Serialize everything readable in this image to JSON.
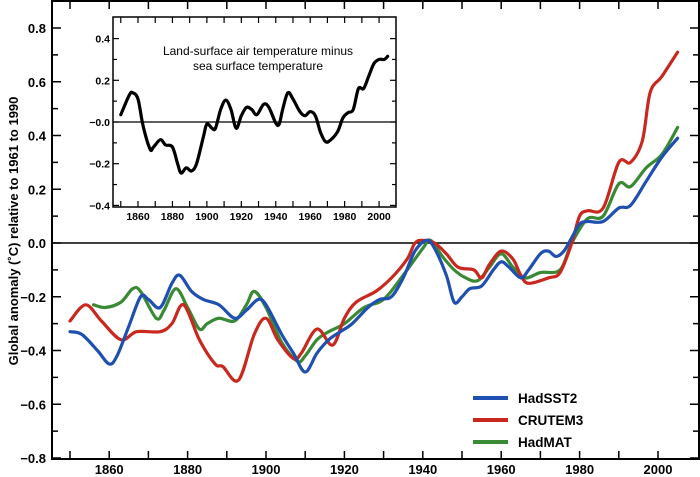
{
  "chart_data": [
    {
      "type": "line",
      "title": "",
      "xlabel": "",
      "ylabel": "Global anomaly (˚C)  relative to 1961 to 1990",
      "xlim": [
        1845,
        2010
      ],
      "ylim": [
        -0.81,
        0.9
      ],
      "x_ticks": [
        "1860",
        "1880",
        "1900",
        "1920",
        "1940",
        "1960",
        "1980",
        "2000"
      ],
      "x_tick_values": [
        1860,
        1880,
        1900,
        1920,
        1940,
        1960,
        1980,
        2000
      ],
      "y_ticks": [
        "0.8",
        "0.6",
        "0.4",
        "0.2",
        "0.0",
        "−0.2",
        "−0.4",
        "−0.6",
        "−0.8"
      ],
      "y_tick_values": [
        0.8,
        0.6,
        0.4,
        0.2,
        0.0,
        -0.2,
        -0.4,
        -0.6,
        -0.8
      ],
      "zero_line": true,
      "legend_position": "bottom-right",
      "series": [
        {
          "name": "HadSST2",
          "color": "#1f4fb0",
          "x": [
            1850,
            1853,
            1857,
            1860,
            1862,
            1865,
            1868,
            1870,
            1873,
            1876,
            1878,
            1881,
            1884,
            1888,
            1892,
            1895,
            1898,
            1900,
            1904,
            1907,
            1910,
            1913,
            1916,
            1919,
            1922,
            1926,
            1929,
            1932,
            1935,
            1938,
            1941,
            1943,
            1946,
            1948,
            1950,
            1952,
            1955,
            1958,
            1960,
            1962,
            1965,
            1967,
            1970,
            1972,
            1974,
            1976,
            1978,
            1980,
            1982,
            1986,
            1990,
            1993,
            1997,
            2001,
            2005
          ],
          "y": [
            -0.33,
            -0.34,
            -0.4,
            -0.45,
            -0.42,
            -0.31,
            -0.2,
            -0.21,
            -0.24,
            -0.15,
            -0.12,
            -0.18,
            -0.21,
            -0.23,
            -0.28,
            -0.25,
            -0.21,
            -0.23,
            -0.34,
            -0.41,
            -0.48,
            -0.41,
            -0.36,
            -0.33,
            -0.3,
            -0.24,
            -0.21,
            -0.2,
            -0.13,
            -0.03,
            0.01,
            -0.02,
            -0.12,
            -0.22,
            -0.2,
            -0.17,
            -0.16,
            -0.1,
            -0.07,
            -0.09,
            -0.13,
            -0.1,
            -0.04,
            -0.03,
            -0.05,
            -0.03,
            0.02,
            0.07,
            0.08,
            0.08,
            0.13,
            0.14,
            0.23,
            0.32,
            0.39
          ]
        },
        {
          "name": "CRUTEM3",
          "color": "#c8281e",
          "x": [
            1850,
            1854,
            1858,
            1863,
            1867,
            1873,
            1876,
            1879,
            1883,
            1887,
            1889,
            1893,
            1897,
            1900,
            1903,
            1907,
            1909,
            1913,
            1917,
            1920,
            1923,
            1928,
            1932,
            1936,
            1938,
            1940,
            1943,
            1946,
            1949,
            1953,
            1955,
            1957,
            1960,
            1963,
            1965,
            1967,
            1972,
            1975,
            1978,
            1980,
            1982,
            1986,
            1990,
            1993,
            1996,
            1998,
            2001,
            2005
          ],
          "y": [
            -0.29,
            -0.23,
            -0.29,
            -0.36,
            -0.33,
            -0.33,
            -0.3,
            -0.23,
            -0.36,
            -0.45,
            -0.46,
            -0.51,
            -0.34,
            -0.28,
            -0.36,
            -0.43,
            -0.41,
            -0.32,
            -0.38,
            -0.28,
            -0.22,
            -0.18,
            -0.13,
            -0.06,
            0.0,
            0.01,
            0.0,
            -0.04,
            -0.09,
            -0.1,
            -0.13,
            -0.08,
            -0.03,
            -0.06,
            -0.12,
            -0.15,
            -0.13,
            -0.11,
            0.0,
            0.1,
            0.12,
            0.13,
            0.3,
            0.3,
            0.38,
            0.56,
            0.62,
            0.71
          ]
        },
        {
          "name": "HadMAT",
          "color": "#3a8a35",
          "x": [
            1856,
            1859,
            1863,
            1866,
            1868,
            1872,
            1874,
            1877,
            1880,
            1883,
            1885,
            1888,
            1892,
            1895,
            1897,
            1900,
            1904,
            1908,
            1910,
            1913,
            1916,
            1920,
            1925,
            1930,
            1935,
            1940,
            1942,
            1945,
            1948,
            1951,
            1954,
            1957,
            1960,
            1963,
            1966,
            1970,
            1975,
            1978,
            1982,
            1986,
            1990,
            1993,
            1997,
            2001,
            2005
          ],
          "y": [
            -0.23,
            -0.24,
            -0.22,
            -0.17,
            -0.18,
            -0.28,
            -0.25,
            -0.17,
            -0.24,
            -0.32,
            -0.3,
            -0.28,
            -0.29,
            -0.23,
            -0.18,
            -0.24,
            -0.37,
            -0.44,
            -0.42,
            -0.36,
            -0.33,
            -0.3,
            -0.24,
            -0.21,
            -0.12,
            -0.02,
            0.01,
            -0.05,
            -0.1,
            -0.13,
            -0.14,
            -0.09,
            -0.04,
            -0.09,
            -0.13,
            -0.11,
            -0.1,
            0.0,
            0.09,
            0.1,
            0.22,
            0.21,
            0.28,
            0.33,
            0.43
          ]
        }
      ]
    },
    {
      "type": "line",
      "title": "Land-surface air temperature minus sea surface temperature",
      "title_lines": [
        "Land-surface air temperature minus",
        "sea surface temperature"
      ],
      "xlim": [
        1845.5,
        2010
      ],
      "ylim": [
        -0.41,
        0.5
      ],
      "x_ticks": [
        "1860",
        "1880",
        "1900",
        "1920",
        "1940",
        "1960",
        "1980",
        "2000"
      ],
      "x_tick_values": [
        1860,
        1880,
        1900,
        1920,
        1940,
        1960,
        1980,
        2000
      ],
      "y_ticks": [
        "0.4",
        "0.2",
        "−0.0",
        "−0.2",
        "−0.4"
      ],
      "y_tick_values": [
        0.4,
        0.2,
        0.0,
        -0.2,
        -0.4
      ],
      "zero_line": true,
      "series": [
        {
          "name": "Land minus sea",
          "color": "#000000",
          "x": [
            1850,
            1855,
            1857,
            1860,
            1863,
            1867,
            1869,
            1873,
            1876,
            1880,
            1883,
            1885,
            1888,
            1891,
            1894,
            1898,
            1900,
            1903,
            1905,
            1908,
            1911,
            1914,
            1917,
            1920,
            1923,
            1926,
            1929,
            1933,
            1936,
            1940,
            1942,
            1944,
            1947,
            1950,
            1954,
            1957,
            1960,
            1963,
            1966,
            1969,
            1972,
            1976,
            1979,
            1982,
            1985,
            1988,
            1991,
            1994,
            1997,
            2000,
            2003,
            2005
          ],
          "y": [
            0.035,
            0.13,
            0.14,
            0.11,
            -0.02,
            -0.13,
            -0.12,
            -0.085,
            -0.11,
            -0.12,
            -0.2,
            -0.245,
            -0.22,
            -0.235,
            -0.2,
            -0.07,
            -0.01,
            -0.03,
            -0.03,
            0.06,
            0.105,
            0.06,
            -0.03,
            0.03,
            0.07,
            0.06,
            0.035,
            0.085,
            0.07,
            -0.005,
            -0.01,
            0.06,
            0.14,
            0.11,
            0.05,
            0.03,
            0.05,
            0.03,
            -0.05,
            -0.095,
            -0.085,
            -0.045,
            0.02,
            0.045,
            0.06,
            0.16,
            0.16,
            0.22,
            0.28,
            0.3,
            0.3,
            0.315
          ]
        }
      ]
    }
  ]
}
